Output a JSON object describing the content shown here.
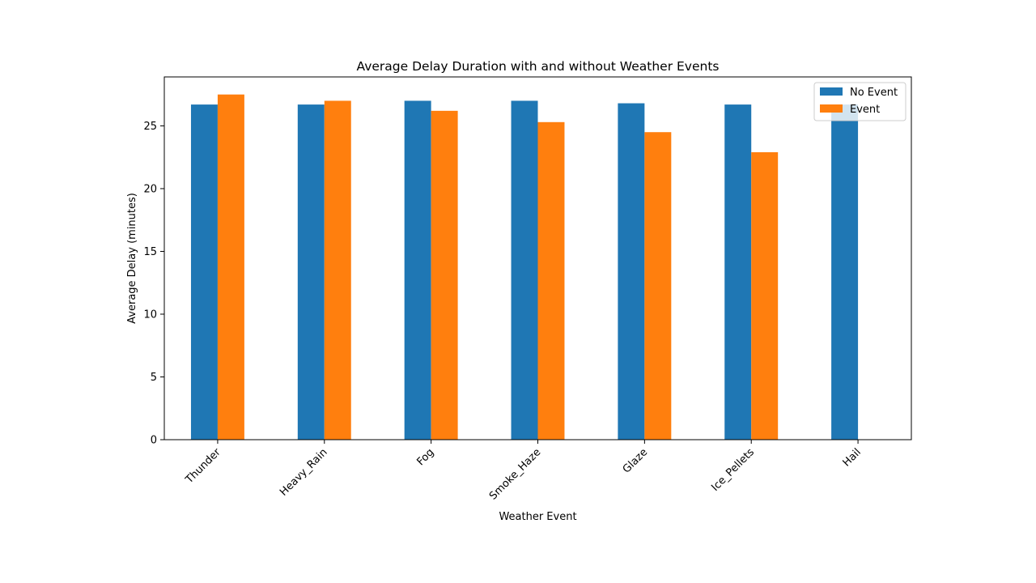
{
  "chart_data": {
    "type": "bar",
    "title": "Average Delay Duration with and without Weather Events",
    "xlabel": "Weather Event",
    "ylabel": "Average Delay (minutes)",
    "categories": [
      "Thunder",
      "Heavy_Rain",
      "Fog",
      "Smoke_Haze",
      "Glaze",
      "Ice_Pellets",
      "Hail"
    ],
    "series": [
      {
        "name": "No Event",
        "color": "#1f77b4",
        "values": [
          26.7,
          26.7,
          27.0,
          27.0,
          26.8,
          26.7,
          26.7
        ]
      },
      {
        "name": "Event",
        "color": "#ff7f0e",
        "values": [
          27.5,
          27.0,
          26.2,
          25.3,
          24.5,
          22.9,
          null
        ]
      }
    ],
    "ylim": [
      0,
      28.9
    ],
    "yticks": [
      0,
      5,
      10,
      15,
      20,
      25
    ],
    "grid": false,
    "legend_position": "top-right"
  }
}
